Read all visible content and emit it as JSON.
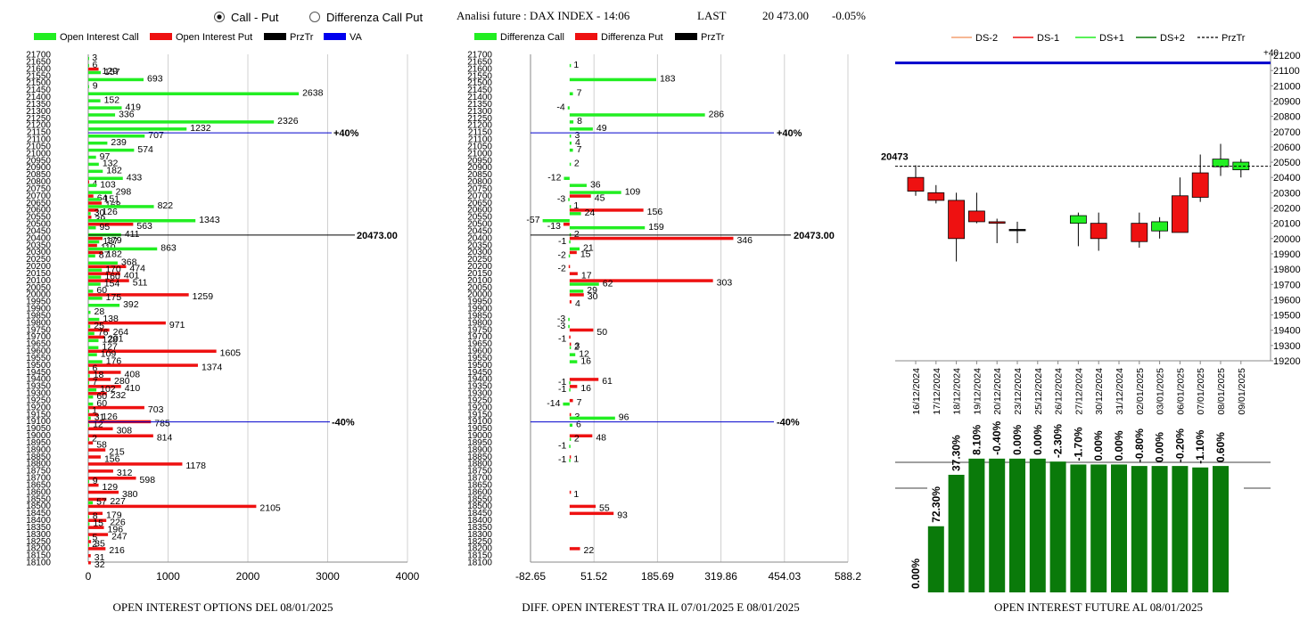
{
  "header": {
    "radio_call_put": "Call - Put",
    "radio_diff": "Differenza Call Put",
    "title": "Analisi future : DAX INDEX - 14:06",
    "last_label": "LAST",
    "last_value": "20 473.00",
    "change": "-0.05%"
  },
  "colors": {
    "call": "#22ee22",
    "put": "#ee1111",
    "przt": "#000000",
    "va": "#0000ee",
    "bar_dark": "#0a7a0a"
  },
  "panel1": {
    "legend": [
      "Open Interest Call",
      "Open Interest Put",
      "PrzTr",
      "VA"
    ],
    "caption": "OPEN INTEREST OPTIONS DEL 08/01/2025",
    "ref_lines": [
      {
        "strike": 21150,
        "label": "+40%"
      },
      {
        "strike": 20450,
        "label": "20473.00"
      },
      {
        "strike": 19100,
        "label": "-40%"
      }
    ]
  },
  "panel2": {
    "legend": [
      "Differenza Call",
      "Differenza Put",
      "PrzTr"
    ],
    "caption": "DIFF. OPEN INTEREST TRA IL 07/01/2025 E 08/01/2025",
    "ref_lines": [
      {
        "strike": 21150,
        "label": "+40%"
      },
      {
        "strike": 20450,
        "label": "20473.00"
      },
      {
        "strike": 19100,
        "label": "-40%"
      }
    ]
  },
  "panel3": {
    "legend": [
      "DS-2",
      "DS-1",
      "DS+1",
      "DS+2",
      "PrzTr"
    ],
    "caption": "OPEN INTEREST FUTURE AL 08/01/2025",
    "price_label": "20473",
    "top_label": "+40"
  },
  "chart_data": [
    {
      "type": "bar",
      "orientation": "horizontal",
      "categories": [
        21700,
        21650,
        21600,
        21550,
        21500,
        21450,
        21400,
        21350,
        21300,
        21250,
        21200,
        21150,
        21100,
        21050,
        21000,
        20950,
        20900,
        20850,
        20800,
        20750,
        20700,
        20650,
        20600,
        20550,
        20500,
        20450,
        20400,
        20350,
        20300,
        20250,
        20200,
        20150,
        20100,
        20050,
        20000,
        19950,
        19900,
        19850,
        19800,
        19750,
        19700,
        19650,
        19600,
        19550,
        19500,
        19450,
        19400,
        19350,
        19300,
        19250,
        19200,
        19150,
        19100,
        19050,
        19000,
        18950,
        18900,
        18850,
        18800,
        18750,
        18700,
        18650,
        18600,
        18550,
        18500,
        18450,
        18400,
        18350,
        18300,
        18250,
        18200,
        18150,
        18100
      ],
      "series": [
        {
          "name": "Open Interest Call",
          "values": [
            null,
            3,
            6,
            157,
            693,
            9,
            2638,
            152,
            419,
            336,
            2326,
            1232,
            707,
            239,
            574,
            97,
            132,
            182,
            433,
            103,
            298,
            151,
            822,
            30,
            1343,
            95,
            411,
            137,
            863,
            87,
            368,
            170,
            160,
            154,
            60,
            175,
            392,
            28,
            138,
            25,
            76,
            128,
            127,
            109,
            176,
            6,
            18,
            7,
            102,
            60,
            60,
            1,
            31,
            12,
            null,
            2,
            null,
            null,
            null,
            null,
            null,
            9,
            null,
            null,
            57,
            null,
            8,
            15,
            null,
            5,
            2,
            null,
            null
          ]
        },
        {
          "name": "Open Interest Put",
          "values": [
            null,
            null,
            129,
            null,
            null,
            null,
            null,
            null,
            null,
            null,
            null,
            null,
            null,
            null,
            null,
            null,
            null,
            null,
            4,
            null,
            64,
            168,
            126,
            39,
            563,
            null,
            179,
            110,
            182,
            null,
            474,
            401,
            511,
            null,
            1259,
            null,
            null,
            null,
            971,
            264,
            201,
            null,
            1605,
            null,
            1374,
            408,
            280,
            410,
            232,
            null,
            703,
            126,
            785,
            308,
            814,
            58,
            215,
            156,
            1178,
            312,
            598,
            129,
            380,
            227,
            2105,
            179,
            226,
            196,
            247,
            35,
            216,
            31,
            32
          ]
        }
      ],
      "title": "OPEN INTEREST OPTIONS DEL 08/01/2025",
      "xlim": [
        0,
        4000
      ],
      "xticks": [
        0,
        1000,
        2000,
        3000,
        4000
      ]
    },
    {
      "type": "bar",
      "orientation": "horizontal",
      "categories": [
        21700,
        21650,
        21600,
        21550,
        21500,
        21450,
        21400,
        21350,
        21300,
        21250,
        21200,
        21150,
        21100,
        21050,
        21000,
        20950,
        20900,
        20850,
        20800,
        20750,
        20700,
        20650,
        20600,
        20550,
        20500,
        20450,
        20400,
        20350,
        20300,
        20250,
        20200,
        20150,
        20100,
        20050,
        20000,
        19950,
        19900,
        19850,
        19800,
        19750,
        19700,
        19650,
        19600,
        19550,
        19500,
        19450,
        19400,
        19350,
        19300,
        19250,
        19200,
        19150,
        19100,
        19050,
        19000,
        18950,
        18900,
        18850,
        18800,
        18750,
        18700,
        18650,
        18600,
        18550,
        18500,
        18450,
        18400,
        18350,
        18300,
        18250,
        18200,
        18150,
        18100
      ],
      "series": [
        {
          "name": "Differenza Call",
          "values": [
            null,
            null,
            1,
            null,
            183,
            null,
            7,
            null,
            -4,
            286,
            8,
            49,
            3,
            4,
            7,
            null,
            2,
            null,
            -12,
            36,
            109,
            -3,
            1,
            24,
            -57,
            159,
            2,
            -1,
            21,
            -2,
            null,
            null,
            null,
            62,
            29,
            null,
            null,
            null,
            -3,
            -3,
            null,
            null,
            2,
            12,
            16,
            null,
            null,
            -1,
            -1,
            null,
            -14,
            null,
            96,
            6,
            null,
            2,
            -1,
            null,
            -1,
            null,
            null,
            null,
            null,
            null,
            null,
            null,
            null,
            null,
            null,
            null,
            null,
            null,
            null
          ]
        },
        {
          "name": "Differenza Put",
          "values": [
            null,
            null,
            null,
            null,
            null,
            null,
            null,
            null,
            null,
            null,
            null,
            null,
            null,
            null,
            null,
            null,
            null,
            null,
            null,
            null,
            45,
            null,
            156,
            null,
            -13,
            null,
            346,
            null,
            15,
            null,
            -2,
            17,
            303,
            null,
            30,
            4,
            null,
            null,
            null,
            50,
            -1,
            3,
            null,
            null,
            null,
            null,
            61,
            16,
            null,
            7,
            null,
            3,
            null,
            null,
            48,
            null,
            null,
            1,
            null,
            null,
            null,
            null,
            1,
            null,
            55,
            93,
            null,
            null,
            null,
            null,
            22,
            null,
            null
          ]
        }
      ],
      "title": "DIFF. OPEN INTEREST TRA IL 07/01/2025 E 08/01/2025",
      "xlim": [
        -82.65,
        588.2
      ],
      "xticks": [
        -82.65,
        51.52,
        185.69,
        319.86,
        454.03,
        588.2
      ]
    },
    {
      "type": "candlestick",
      "x": [
        "16/12/2024",
        "17/12/2024",
        "18/12/2024",
        "19/12/2024",
        "20/12/2024",
        "23/12/2024",
        "25/12/2024",
        "26/12/2024",
        "27/12/2024",
        "30/12/2024",
        "31/12/2024",
        "02/01/2025",
        "03/01/2025",
        "06/01/2025",
        "07/01/2025",
        "08/01/2025",
        "09/01/2025"
      ],
      "open": [
        20400,
        20300,
        20250,
        20180,
        20110,
        20060,
        null,
        null,
        20100,
        20100,
        null,
        20100,
        20050,
        20280,
        20430,
        20470,
        20450
      ],
      "close": [
        20310,
        20250,
        20000,
        20110,
        20100,
        20060,
        null,
        null,
        20150,
        20000,
        null,
        19980,
        20110,
        20040,
        20270,
        20520,
        20500
      ],
      "high": [
        20480,
        20350,
        20300,
        20300,
        20130,
        20110,
        null,
        null,
        20170,
        20170,
        null,
        20170,
        20140,
        20400,
        20550,
        20620,
        20520
      ],
      "low": [
        20280,
        20230,
        19850,
        20100,
        19970,
        19970,
        null,
        null,
        19950,
        19920,
        null,
        19940,
        20000,
        20040,
        20240,
        20410,
        20400
      ],
      "ylim": [
        19200,
        21200
      ],
      "yticks": [
        19200,
        19300,
        19400,
        19500,
        19600,
        19700,
        19800,
        19900,
        20000,
        20100,
        20200,
        20300,
        20400,
        20500,
        20600,
        20700,
        20800,
        20900,
        21000,
        21100,
        21200
      ],
      "lines": {
        "przt": 20473,
        "plus40": 21150
      }
    },
    {
      "type": "bar",
      "categories": [
        "16/12/2024",
        "17/12/2024",
        "18/12/2024",
        "19/12/2024",
        "20/12/2024",
        "23/12/2024",
        "25/12/2024",
        "26/12/2024",
        "27/12/2024",
        "30/12/2024",
        "31/12/2024",
        "02/01/2025",
        "03/01/2025",
        "06/01/2025",
        "07/01/2025",
        "08/01/2025",
        "09/01/2025"
      ],
      "labels": [
        "0.00%",
        "72.30%",
        "37.30%",
        "8.10%",
        "-0.40%",
        "0.00%",
        "0.00%",
        "-2.30%",
        "-1.70%",
        "0.00%",
        "0.00%",
        "-0.80%",
        "0.00%",
        "-0.20%",
        "-1.10%",
        "0.60%"
      ],
      "values": [
        0,
        0.45,
        0.8,
        0.91,
        0.91,
        0.91,
        0.91,
        0.89,
        0.87,
        0.87,
        0.87,
        0.86,
        0.86,
        0.86,
        0.85,
        0.86
      ]
    }
  ]
}
